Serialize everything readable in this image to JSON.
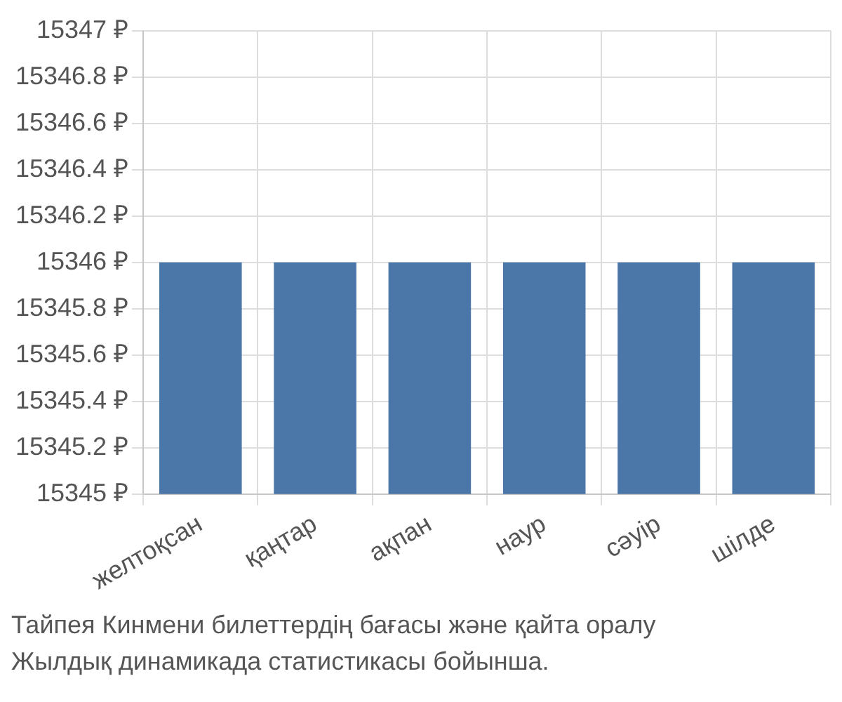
{
  "chart_data": {
    "type": "bar",
    "categories": [
      "желтоқсан",
      "қаңтар",
      "ақпан",
      "наур",
      "сәуір",
      "шілде"
    ],
    "values": [
      15346,
      15346,
      15346,
      15346,
      15346,
      15346
    ],
    "color": "#4a76a8",
    "ylim": [
      15345,
      15347
    ],
    "yticks": [
      {
        "value": 15345,
        "label": "15345 ₽"
      },
      {
        "value": 15345.2,
        "label": "15345.2 ₽"
      },
      {
        "value": 15345.4,
        "label": "15345.4 ₽"
      },
      {
        "value": 15345.6,
        "label": "15345.6 ₽"
      },
      {
        "value": 15345.8,
        "label": "15345.8 ₽"
      },
      {
        "value": 15346,
        "label": "15346 ₽"
      },
      {
        "value": 15346.2,
        "label": "15346.2 ₽"
      },
      {
        "value": 15346.4,
        "label": "15346.4 ₽"
      },
      {
        "value": 15346.6,
        "label": "15346.6 ₽"
      },
      {
        "value": 15346.8,
        "label": "15346.8 ₽"
      },
      {
        "value": 15347,
        "label": "15347 ₽"
      }
    ],
    "grid": true,
    "legend": false,
    "annotations": [
      "Тайпея Кинмени билеттердің бағасы және қайта оралу",
      "Жылдық динамикада статистикасы бойынша."
    ]
  }
}
